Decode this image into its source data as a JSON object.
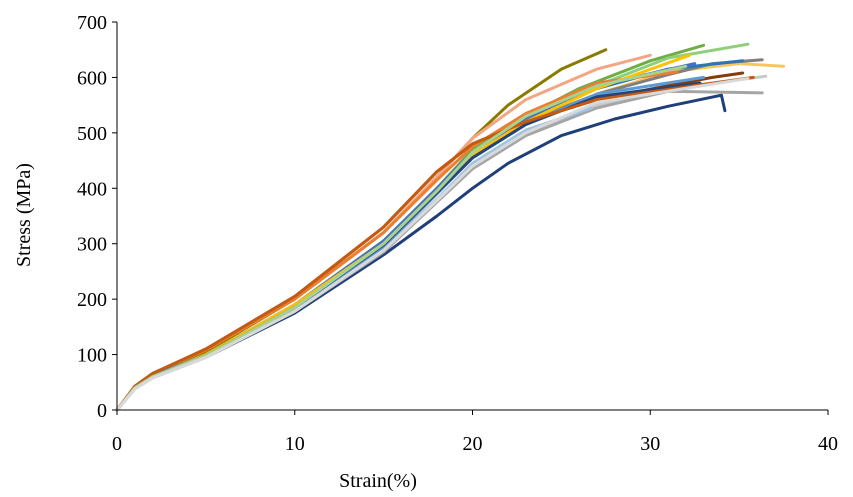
{
  "chart_data": {
    "type": "line",
    "title": "",
    "xlabel": "Strain(%)",
    "ylabel": "Stress (MPa)",
    "xlim": [
      0,
      40
    ],
    "ylim": [
      0,
      700
    ],
    "x_ticks": [
      "0",
      "10",
      "20",
      "30",
      "40"
    ],
    "y_ticks": [
      "0",
      "100",
      "200",
      "300",
      "400",
      "500",
      "600",
      "700"
    ],
    "grid": false,
    "legend": "none",
    "series": [
      {
        "color": "#1f3f7a",
        "x": [
          0,
          1,
          2,
          5,
          10,
          15,
          18,
          20,
          22,
          25,
          28,
          31,
          34,
          34.2
        ],
        "y": [
          0,
          40,
          60,
          95,
          175,
          280,
          350,
          400,
          445,
          495,
          525,
          548,
          568,
          540
        ]
      },
      {
        "color": "#8b7a00",
        "x": [
          0,
          1,
          2,
          5,
          10,
          15,
          18,
          20,
          22,
          25,
          27.5
        ],
        "y": [
          0,
          42,
          65,
          105,
          200,
          320,
          420,
          490,
          550,
          615,
          650
        ]
      },
      {
        "color": "#70ad47",
        "x": [
          0,
          1,
          2,
          5,
          10,
          15,
          18,
          20,
          23,
          26,
          30,
          33
        ],
        "y": [
          0,
          40,
          62,
          100,
          190,
          305,
          400,
          470,
          530,
          580,
          630,
          658
        ]
      },
      {
        "color": "#8ed07a",
        "x": [
          0,
          1,
          2,
          5,
          10,
          15,
          18,
          20,
          23,
          27,
          31,
          35.5
        ],
        "y": [
          0,
          40,
          60,
          98,
          185,
          300,
          395,
          465,
          525,
          585,
          635,
          660
        ]
      },
      {
        "color": "#f4a582",
        "x": [
          0,
          1,
          2,
          5,
          10,
          15,
          18,
          20,
          23,
          27,
          30
        ],
        "y": [
          0,
          42,
          65,
          110,
          200,
          320,
          420,
          490,
          560,
          615,
          640
        ]
      },
      {
        "color": "#f6c760",
        "x": [
          0,
          1,
          2,
          5,
          10,
          15,
          18,
          20,
          23,
          27,
          31,
          35,
          37.5
        ],
        "y": [
          0,
          40,
          60,
          97,
          180,
          295,
          390,
          455,
          515,
          570,
          610,
          625,
          620
        ]
      },
      {
        "color": "#7f7f7f",
        "x": [
          0,
          1,
          2,
          5,
          10,
          15,
          18,
          20,
          23,
          27,
          31,
          33.5,
          36.3
        ],
        "y": [
          0,
          40,
          60,
          98,
          185,
          295,
          390,
          455,
          520,
          570,
          605,
          625,
          632
        ]
      },
      {
        "color": "#843c0c",
        "x": [
          0,
          1,
          2,
          5,
          10,
          15,
          18,
          20,
          23,
          27,
          31,
          33.5,
          35.2
        ],
        "y": [
          0,
          42,
          65,
          110,
          205,
          330,
          430,
          480,
          520,
          560,
          585,
          600,
          608
        ]
      },
      {
        "color": "#2e75b6",
        "x": [
          0,
          1,
          2,
          5,
          10,
          15,
          18,
          20,
          23,
          27,
          31,
          35.2
        ],
        "y": [
          0,
          40,
          60,
          100,
          190,
          300,
          395,
          460,
          530,
          580,
          615,
          630
        ]
      },
      {
        "color": "#c9c9c9",
        "x": [
          0,
          1,
          2,
          5,
          10,
          15,
          18,
          20,
          23,
          27,
          31,
          36.5
        ],
        "y": [
          0,
          38,
          58,
          95,
          180,
          290,
          380,
          440,
          500,
          550,
          580,
          602
        ]
      },
      {
        "color": "#a5a5a5",
        "x": [
          0,
          1,
          2,
          5,
          10,
          15,
          18,
          20,
          23,
          27,
          31,
          36.3
        ],
        "y": [
          0,
          38,
          58,
          95,
          178,
          285,
          375,
          435,
          495,
          545,
          575,
          572
        ]
      },
      {
        "color": "#9dc3e6",
        "x": [
          0,
          1,
          2,
          5,
          10,
          15,
          18,
          20,
          23,
          26.7
        ],
        "y": [
          0,
          40,
          60,
          97,
          180,
          290,
          380,
          445,
          505,
          545
        ]
      },
      {
        "color": "#ed7d31",
        "x": [
          0,
          1,
          2,
          5,
          10,
          15,
          18,
          20,
          23,
          27,
          31.5
        ],
        "y": [
          0,
          42,
          65,
          108,
          200,
          320,
          415,
          475,
          535,
          590,
          610
        ]
      },
      {
        "color": "#4472c4",
        "x": [
          0,
          1,
          2,
          5,
          10,
          15,
          18,
          20,
          23,
          27,
          32.5
        ],
        "y": [
          0,
          40,
          62,
          100,
          190,
          305,
          400,
          465,
          525,
          585,
          625
        ]
      },
      {
        "color": "#ffc000",
        "x": [
          0,
          1,
          2,
          5,
          10,
          15,
          18,
          20,
          23,
          27,
          32.2
        ],
        "y": [
          0,
          40,
          60,
          100,
          190,
          300,
          395,
          460,
          520,
          580,
          640
        ]
      },
      {
        "color": "#5b9bd5",
        "x": [
          0,
          1,
          2,
          5,
          10,
          15,
          18,
          20,
          23,
          27,
          33
        ],
        "y": [
          0,
          40,
          60,
          98,
          185,
          295,
          390,
          455,
          515,
          570,
          600
        ]
      },
      {
        "color": "#264478",
        "x": [
          0,
          1,
          2,
          5,
          10,
          15,
          18,
          20,
          23,
          27,
          32.8
        ],
        "y": [
          0,
          40,
          60,
          98,
          185,
          298,
          392,
          455,
          515,
          565,
          590
        ]
      },
      {
        "color": "#c55a11",
        "x": [
          0,
          1,
          2,
          5,
          10,
          15,
          18,
          20,
          23,
          27,
          35.8
        ],
        "y": [
          0,
          43,
          66,
          110,
          205,
          330,
          430,
          480,
          520,
          560,
          600
        ]
      },
      {
        "color": "#a9d18e",
        "x": [
          0,
          1,
          2,
          5,
          10,
          15,
          18,
          20,
          23,
          27,
          32
        ],
        "y": [
          0,
          40,
          60,
          98,
          185,
          300,
          395,
          465,
          530,
          585,
          620
        ]
      },
      {
        "color": "#d9d9d9",
        "x": [
          0,
          1,
          2,
          5,
          10,
          15,
          18,
          20,
          23,
          27,
          35.5
        ],
        "y": [
          0,
          38,
          58,
          95,
          178,
          288,
          378,
          440,
          500,
          555,
          598
        ]
      }
    ]
  }
}
